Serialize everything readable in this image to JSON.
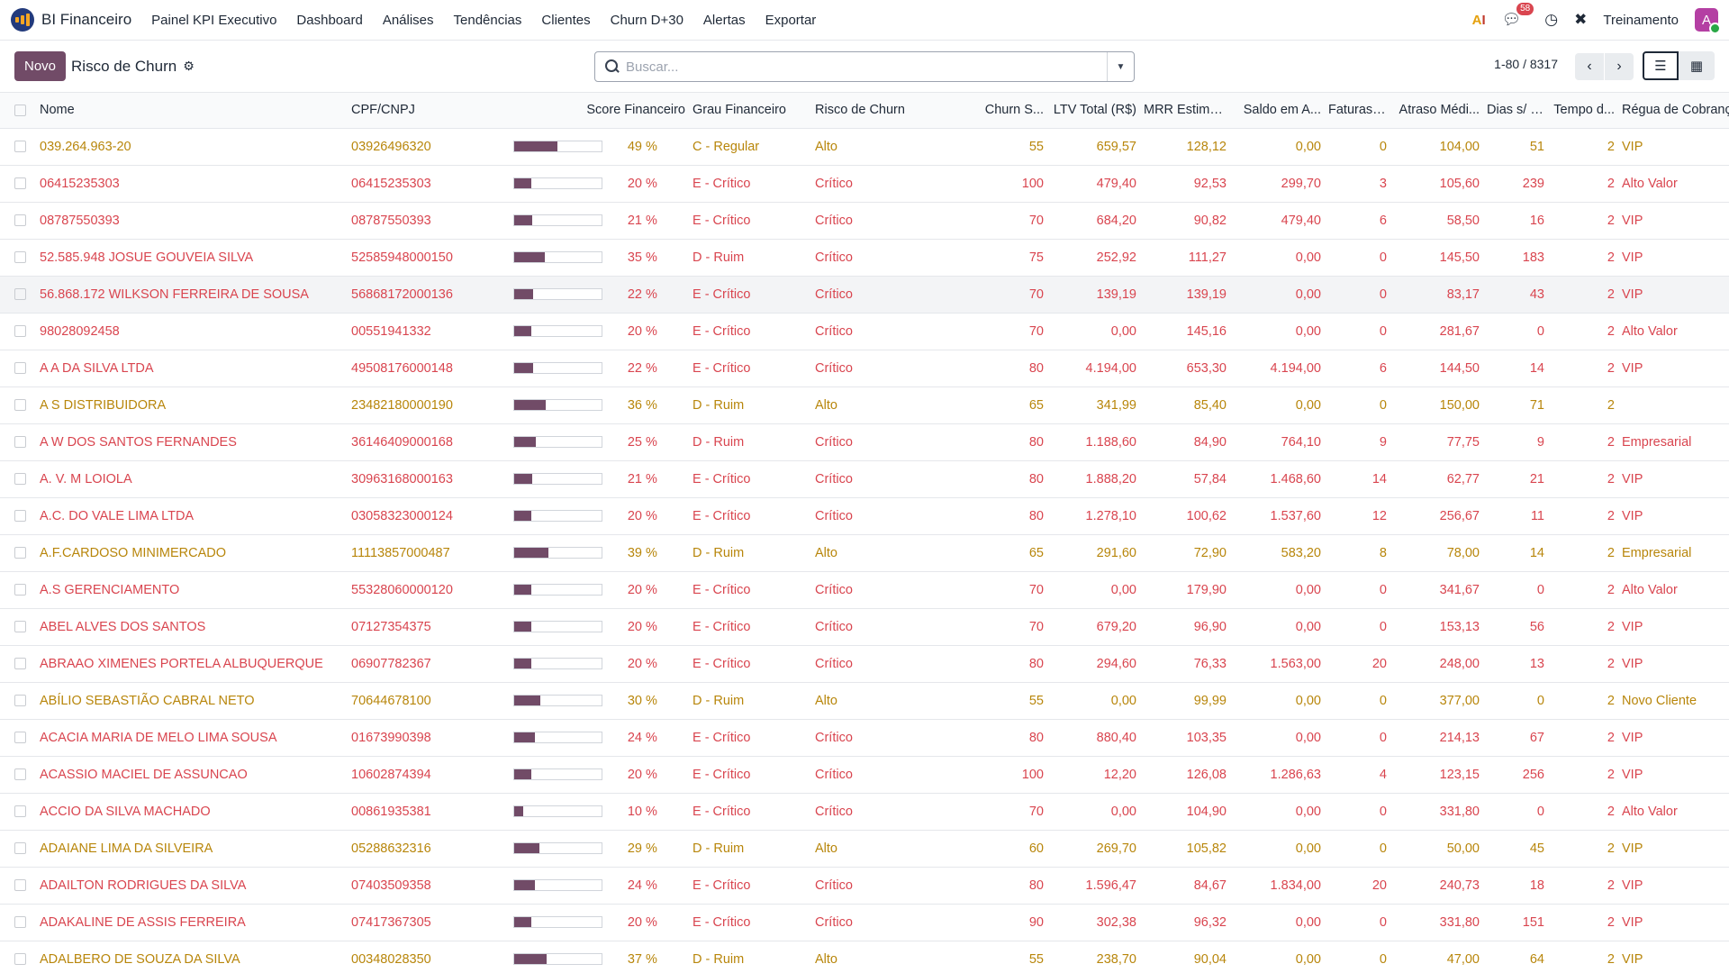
{
  "navbar": {
    "app_name": "BI Financeiro",
    "menu": [
      "Painel KPI Executivo",
      "Dashboard",
      "Análises",
      "Tendências",
      "Clientes",
      "Churn D+30",
      "Alertas",
      "Exportar"
    ],
    "messages_badge": "58",
    "company": "Treinamento",
    "avatar_letter": "A"
  },
  "control": {
    "new_label": "Novo",
    "breadcrumb": "Risco de Churn",
    "search_placeholder": "Buscar...",
    "pager": "1-80 / 8317"
  },
  "columns": [
    "Nome",
    "CPF/CNPJ",
    "Score Financeiro",
    "Grau Financeiro",
    "Risco de Churn",
    "Churn S...",
    "LTV Total (R$)",
    "MRR Estima...",
    "Saldo em A...",
    "Faturas ...",
    "Atraso Médi...",
    "Dias s/ P...",
    "Tempo d...",
    "Régua de Cobrança"
  ],
  "rows": [
    {
      "nome": "039.264.963-20",
      "doc": "03926496320",
      "score": 49,
      "grau": "C - Regular",
      "risco": "Alto",
      "churn": "55",
      "ltv": "659,57",
      "mrr": "128,12",
      "saldo": "0,00",
      "faturas": "0",
      "atraso": "104,00",
      "dias": "51",
      "tempo": "2",
      "regua": "VIP"
    },
    {
      "nome": "06415235303",
      "doc": "06415235303",
      "score": 20,
      "grau": "E - Crítico",
      "risco": "Crítico",
      "churn": "100",
      "ltv": "479,40",
      "mrr": "92,53",
      "saldo": "299,70",
      "faturas": "3",
      "atraso": "105,60",
      "dias": "239",
      "tempo": "2",
      "regua": "Alto Valor"
    },
    {
      "nome": "08787550393",
      "doc": "08787550393",
      "score": 21,
      "grau": "E - Crítico",
      "risco": "Crítico",
      "churn": "70",
      "ltv": "684,20",
      "mrr": "90,82",
      "saldo": "479,40",
      "faturas": "6",
      "atraso": "58,50",
      "dias": "16",
      "tempo": "2",
      "regua": "VIP"
    },
    {
      "nome": "52.585.948 JOSUE GOUVEIA SILVA",
      "doc": "52585948000150",
      "score": 35,
      "grau": "D - Ruim",
      "risco": "Crítico",
      "churn": "75",
      "ltv": "252,92",
      "mrr": "111,27",
      "saldo": "0,00",
      "faturas": "0",
      "atraso": "145,50",
      "dias": "183",
      "tempo": "2",
      "regua": "VIP"
    },
    {
      "nome": "56.868.172 WILKSON FERREIRA DE SOUSA",
      "doc": "56868172000136",
      "score": 22,
      "grau": "E - Crítico",
      "risco": "Crítico",
      "churn": "70",
      "ltv": "139,19",
      "mrr": "139,19",
      "saldo": "0,00",
      "faturas": "0",
      "atraso": "83,17",
      "dias": "43",
      "tempo": "2",
      "regua": "VIP"
    },
    {
      "nome": "98028092458",
      "doc": "00551941332",
      "score": 20,
      "grau": "E - Crítico",
      "risco": "Crítico",
      "churn": "70",
      "ltv": "0,00",
      "mrr": "145,16",
      "saldo": "0,00",
      "faturas": "0",
      "atraso": "281,67",
      "dias": "0",
      "tempo": "2",
      "regua": "Alto Valor"
    },
    {
      "nome": "A A DA SILVA LTDA",
      "doc": "49508176000148",
      "score": 22,
      "grau": "E - Crítico",
      "risco": "Crítico",
      "churn": "80",
      "ltv": "4.194,00",
      "mrr": "653,30",
      "saldo": "4.194,00",
      "faturas": "6",
      "atraso": "144,50",
      "dias": "14",
      "tempo": "2",
      "regua": "VIP"
    },
    {
      "nome": "A S DISTRIBUIDORA",
      "doc": "23482180000190",
      "score": 36,
      "grau": "D - Ruim",
      "risco": "Alto",
      "churn": "65",
      "ltv": "341,99",
      "mrr": "85,40",
      "saldo": "0,00",
      "faturas": "0",
      "atraso": "150,00",
      "dias": "71",
      "tempo": "2",
      "regua": ""
    },
    {
      "nome": "A W DOS SANTOS FERNANDES",
      "doc": "36146409000168",
      "score": 25,
      "grau": "D - Ruim",
      "risco": "Crítico",
      "churn": "80",
      "ltv": "1.188,60",
      "mrr": "84,90",
      "saldo": "764,10",
      "faturas": "9",
      "atraso": "77,75",
      "dias": "9",
      "tempo": "2",
      "regua": "Empresarial"
    },
    {
      "nome": "A. V. M LOIOLA",
      "doc": "30963168000163",
      "score": 21,
      "grau": "E - Crítico",
      "risco": "Crítico",
      "churn": "80",
      "ltv": "1.888,20",
      "mrr": "57,84",
      "saldo": "1.468,60",
      "faturas": "14",
      "atraso": "62,77",
      "dias": "21",
      "tempo": "2",
      "regua": "VIP"
    },
    {
      "nome": "A.C. DO VALE LIMA LTDA",
      "doc": "03058323000124",
      "score": 20,
      "grau": "E - Crítico",
      "risco": "Crítico",
      "churn": "80",
      "ltv": "1.278,10",
      "mrr": "100,62",
      "saldo": "1.537,60",
      "faturas": "12",
      "atraso": "256,67",
      "dias": "11",
      "tempo": "2",
      "regua": "VIP"
    },
    {
      "nome": "A.F.CARDOSO MINIMERCADO",
      "doc": "11113857000487",
      "score": 39,
      "grau": "D - Ruim",
      "risco": "Alto",
      "churn": "65",
      "ltv": "291,60",
      "mrr": "72,90",
      "saldo": "583,20",
      "faturas": "8",
      "atraso": "78,00",
      "dias": "14",
      "tempo": "2",
      "regua": "Empresarial"
    },
    {
      "nome": "A.S GERENCIAMENTO",
      "doc": "55328060000120",
      "score": 20,
      "grau": "E - Crítico",
      "risco": "Crítico",
      "churn": "70",
      "ltv": "0,00",
      "mrr": "179,90",
      "saldo": "0,00",
      "faturas": "0",
      "atraso": "341,67",
      "dias": "0",
      "tempo": "2",
      "regua": "Alto Valor"
    },
    {
      "nome": "ABEL ALVES DOS SANTOS",
      "doc": "07127354375",
      "score": 20,
      "grau": "E - Crítico",
      "risco": "Crítico",
      "churn": "70",
      "ltv": "679,20",
      "mrr": "96,90",
      "saldo": "0,00",
      "faturas": "0",
      "atraso": "153,13",
      "dias": "56",
      "tempo": "2",
      "regua": "VIP"
    },
    {
      "nome": "ABRAAO XIMENES PORTELA ALBUQUERQUE",
      "doc": "06907782367",
      "score": 20,
      "grau": "E - Crítico",
      "risco": "Crítico",
      "churn": "80",
      "ltv": "294,60",
      "mrr": "76,33",
      "saldo": "1.563,00",
      "faturas": "20",
      "atraso": "248,00",
      "dias": "13",
      "tempo": "2",
      "regua": "VIP"
    },
    {
      "nome": "ABÍLIO SEBASTIÃO CABRAL NETO",
      "doc": "70644678100",
      "score": 30,
      "grau": "D - Ruim",
      "risco": "Alto",
      "churn": "55",
      "ltv": "0,00",
      "mrr": "99,99",
      "saldo": "0,00",
      "faturas": "0",
      "atraso": "377,00",
      "dias": "0",
      "tempo": "2",
      "regua": "Novo Cliente"
    },
    {
      "nome": "ACACIA MARIA DE MELO LIMA SOUSA",
      "doc": "01673990398",
      "score": 24,
      "grau": "E - Crítico",
      "risco": "Crítico",
      "churn": "80",
      "ltv": "880,40",
      "mrr": "103,35",
      "saldo": "0,00",
      "faturas": "0",
      "atraso": "214,13",
      "dias": "67",
      "tempo": "2",
      "regua": "VIP"
    },
    {
      "nome": "ACASSIO MACIEL DE ASSUNCAO",
      "doc": "10602874394",
      "score": 20,
      "grau": "E - Crítico",
      "risco": "Crítico",
      "churn": "100",
      "ltv": "12,20",
      "mrr": "126,08",
      "saldo": "1.286,63",
      "faturas": "4",
      "atraso": "123,15",
      "dias": "256",
      "tempo": "2",
      "regua": "VIP"
    },
    {
      "nome": "ACCIO DA SILVA MACHADO",
      "doc": "00861935381",
      "score": 10,
      "grau": "E - Crítico",
      "risco": "Crítico",
      "churn": "70",
      "ltv": "0,00",
      "mrr": "104,90",
      "saldo": "0,00",
      "faturas": "0",
      "atraso": "331,80",
      "dias": "0",
      "tempo": "2",
      "regua": "Alto Valor"
    },
    {
      "nome": "ADAIANE LIMA DA SILVEIRA",
      "doc": "05288632316",
      "score": 29,
      "grau": "D - Ruim",
      "risco": "Alto",
      "churn": "60",
      "ltv": "269,70",
      "mrr": "105,82",
      "saldo": "0,00",
      "faturas": "0",
      "atraso": "50,00",
      "dias": "45",
      "tempo": "2",
      "regua": "VIP"
    },
    {
      "nome": "ADAILTON RODRIGUES DA SILVA",
      "doc": "07403509358",
      "score": 24,
      "grau": "E - Crítico",
      "risco": "Crítico",
      "churn": "80",
      "ltv": "1.596,47",
      "mrr": "84,67",
      "saldo": "1.834,00",
      "faturas": "20",
      "atraso": "240,73",
      "dias": "18",
      "tempo": "2",
      "regua": "VIP"
    },
    {
      "nome": "ADAKALINE DE ASSIS FERREIRA",
      "doc": "07417367305",
      "score": 20,
      "grau": "E - Crítico",
      "risco": "Crítico",
      "churn": "90",
      "ltv": "302,38",
      "mrr": "96,32",
      "saldo": "0,00",
      "faturas": "0",
      "atraso": "331,80",
      "dias": "151",
      "tempo": "2",
      "regua": "VIP"
    },
    {
      "nome": "ADALBERO DE SOUZA DA SILVA",
      "doc": "00348028350",
      "score": 37,
      "grau": "D - Ruim",
      "risco": "Alto",
      "churn": "55",
      "ltv": "238,70",
      "mrr": "90,04",
      "saldo": "0,00",
      "faturas": "0",
      "atraso": "47,00",
      "dias": "64",
      "tempo": "2",
      "regua": "VIP"
    }
  ],
  "colors": {
    "accent": "#714b67",
    "critical": "#d9454f",
    "alto": "#b8860b"
  }
}
